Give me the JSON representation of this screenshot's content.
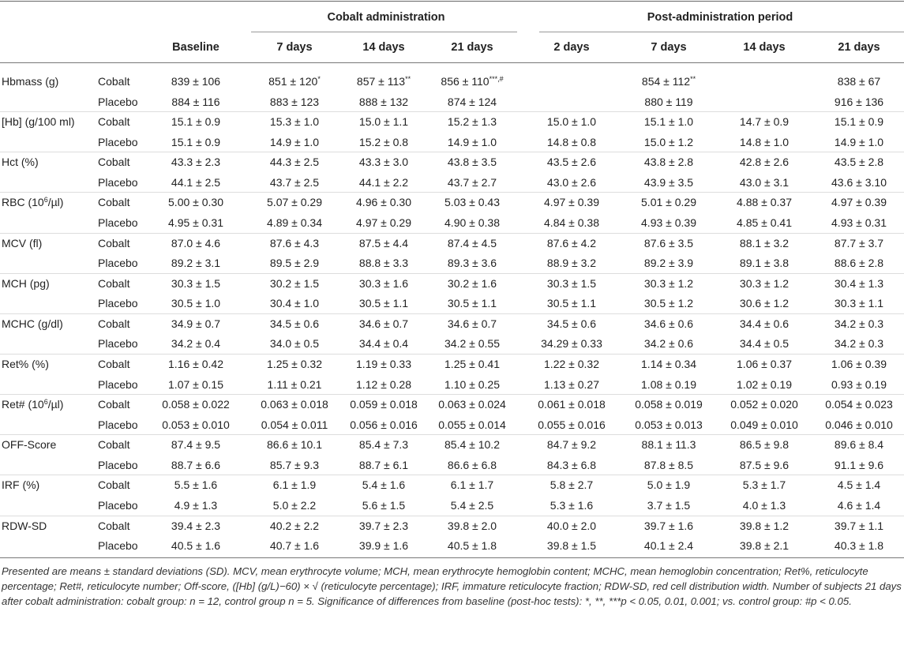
{
  "table": {
    "group_headers": [
      "Cobalt administration",
      "Post-administration period"
    ],
    "columns": [
      "Baseline",
      "7 days",
      "14 days",
      "21 days",
      "2 days",
      "7 days",
      "14 days",
      "21 days"
    ],
    "rows": [
      {
        "parameter": "Hbmass (g)",
        "groups": [
          {
            "name": "Cobalt",
            "cells": [
              "839 ± 106",
              {
                "text": "851 ± 120",
                "sup": "*"
              },
              {
                "text": "857 ± 113",
                "sup": "**"
              },
              {
                "text": "856 ± 110",
                "sup": "***,#"
              },
              null,
              {
                "text": "854 ± 112",
                "sup": "**"
              },
              null,
              "838 ± 67"
            ]
          },
          {
            "name": "Placebo",
            "cells": [
              "884 ± 116",
              "883 ± 123",
              "888 ± 132",
              "874 ± 124",
              null,
              "880 ± 119",
              null,
              "916 ± 136"
            ]
          }
        ]
      },
      {
        "parameter": "[Hb] (g/100 ml)",
        "groups": [
          {
            "name": "Cobalt",
            "cells": [
              "15.1 ± 0.9",
              "15.3 ± 1.0",
              "15.0 ± 1.1",
              "15.2 ± 1.3",
              "15.0 ± 1.0",
              "15.1 ± 1.0",
              "14.7 ± 0.9",
              "15.1 ± 0.9"
            ]
          },
          {
            "name": "Placebo",
            "cells": [
              "15.1 ± 0.9",
              "14.9 ± 1.0",
              "15.2 ± 0.8",
              "14.9 ± 1.0",
              "14.8 ± 0.8",
              "15.0 ± 1.2",
              "14.8 ± 1.0",
              "14.9 ± 1.0"
            ]
          }
        ]
      },
      {
        "parameter": "Hct (%)",
        "groups": [
          {
            "name": "Cobalt",
            "cells": [
              "43.3 ± 2.3",
              "44.3 ± 2.5",
              "43.3 ± 3.0",
              "43.8 ± 3.5",
              "43.5 ± 2.6",
              "43.8 ± 2.8",
              "42.8 ± 2.6",
              "43.5 ± 2.8"
            ]
          },
          {
            "name": "Placebo",
            "cells": [
              "44.1 ± 2.5",
              "43.7 ± 2.5",
              "44.1 ± 2.2",
              "43.7 ± 2.7",
              "43.0 ± 2.6",
              "43.9 ± 3.5",
              "43.0 ± 3.1",
              "43.6 ± 3.10"
            ]
          }
        ]
      },
      {
        "parameter": {
          "text": "RBC (10",
          "sup": "6",
          "rest": "/µl)"
        },
        "groups": [
          {
            "name": "Cobalt",
            "cells": [
              "5.00 ± 0.30",
              "5.07 ± 0.29",
              "4.96 ± 0.30",
              "5.03 ± 0.43",
              "4.97 ± 0.39",
              "5.01 ± 0.29",
              "4.88 ± 0.37",
              "4.97 ± 0.39"
            ]
          },
          {
            "name": "Placebo",
            "cells": [
              "4.95 ± 0.31",
              "4.89 ± 0.34",
              "4.97 ± 0.29",
              "4.90 ± 0.38",
              "4.84 ± 0.38",
              "4.93 ± 0.39",
              "4.85 ± 0.41",
              "4.93 ± 0.31"
            ]
          }
        ]
      },
      {
        "parameter": "MCV (fl)",
        "groups": [
          {
            "name": "Cobalt",
            "cells": [
              "87.0 ± 4.6",
              "87.6 ± 4.3",
              "87.5 ± 4.4",
              "87.4 ± 4.5",
              "87.6 ± 4.2",
              "87.6 ± 3.5",
              "88.1 ± 3.2",
              "87.7 ± 3.7"
            ]
          },
          {
            "name": "Placebo",
            "cells": [
              "89.2 ± 3.1",
              "89.5 ± 2.9",
              "88.8 ± 3.3",
              "89.3 ± 3.6",
              "88.9 ± 3.2",
              "89.2 ± 3.9",
              "89.1 ± 3.8",
              "88.6 ± 2.8"
            ]
          }
        ]
      },
      {
        "parameter": "MCH (pg)",
        "groups": [
          {
            "name": "Cobalt",
            "cells": [
              "30.3 ± 1.5",
              "30.2 ± 1.5",
              "30.3 ± 1.6",
              "30.2 ± 1.6",
              "30.3 ± 1.5",
              "30.3 ± 1.2",
              "30.3 ± 1.2",
              "30.4 ± 1.3"
            ]
          },
          {
            "name": "Placebo",
            "cells": [
              "30.5 ± 1.0",
              "30.4 ± 1.0",
              "30.5 ± 1.1",
              "30.5 ± 1.1",
              "30.5 ± 1.1",
              "30.5 ± 1.2",
              "30.6 ± 1.2",
              "30.3 ± 1.1"
            ]
          }
        ]
      },
      {
        "parameter": "MCHC (g/dl)",
        "groups": [
          {
            "name": "Cobalt",
            "cells": [
              "34.9 ± 0.7",
              "34.5 ± 0.6",
              "34.6 ± 0.7",
              "34.6 ± 0.7",
              "34.5 ± 0.6",
              "34.6 ± 0.6",
              "34.4 ± 0.6",
              "34.2 ± 0.3"
            ]
          },
          {
            "name": "Placebo",
            "cells": [
              "34.2 ± 0.4",
              "34.0 ± 0.5",
              "34.4 ± 0.4",
              "34.2 ± 0.55",
              "34.29 ± 0.33",
              "34.2 ± 0.6",
              "34.4 ± 0.5",
              "34.2 ± 0.3"
            ]
          }
        ]
      },
      {
        "parameter": "Ret% (%)",
        "groups": [
          {
            "name": "Cobalt",
            "cells": [
              "1.16 ± 0.42",
              "1.25 ± 0.32",
              "1.19 ± 0.33",
              "1.25 ± 0.41",
              "1.22 ± 0.32",
              "1.14 ± 0.34",
              "1.06 ± 0.37",
              "1.06 ± 0.39"
            ]
          },
          {
            "name": "Placebo",
            "cells": [
              "1.07 ± 0.15",
              "1.11 ± 0.21",
              "1.12 ± 0.28",
              "1.10 ± 0.25",
              "1.13 ± 0.27",
              "1.08 ± 0.19",
              "1.02 ± 0.19",
              "0.93 ± 0.19"
            ]
          }
        ]
      },
      {
        "parameter": {
          "text": "Ret# (10",
          "sup": "6",
          "rest": "/µl)"
        },
        "groups": [
          {
            "name": "Cobalt",
            "cells": [
              "0.058 ± 0.022",
              "0.063 ± 0.018",
              "0.059 ± 0.018",
              "0.063 ± 0.024",
              "0.061 ± 0.018",
              "0.058 ± 0.019",
              "0.052 ± 0.020",
              "0.054 ± 0.023"
            ]
          },
          {
            "name": "Placebo",
            "cells": [
              "0.053 ± 0.010",
              "0.054 ± 0.011",
              "0.056 ± 0.016",
              "0.055 ± 0.014",
              "0.055 ± 0.016",
              "0.053 ± 0.013",
              "0.049 ± 0.010",
              "0.046 ± 0.010"
            ]
          }
        ]
      },
      {
        "parameter": "OFF-Score",
        "groups": [
          {
            "name": "Cobalt",
            "cells": [
              "87.4 ± 9.5",
              "86.6 ± 10.1",
              "85.4 ± 7.3",
              "85.4 ± 10.2",
              "84.7 ± 9.2",
              "88.1 ± 11.3",
              "86.5 ± 9.8",
              "89.6 ± 8.4"
            ]
          },
          {
            "name": "Placebo",
            "cells": [
              "88.7 ± 6.6",
              "85.7 ± 9.3",
              "88.7 ± 6.1",
              "86.6 ± 6.8",
              "84.3 ± 6.8",
              "87.8 ± 8.5",
              "87.5 ± 9.6",
              "91.1 ± 9.6"
            ]
          }
        ]
      },
      {
        "parameter": "IRF (%)",
        "groups": [
          {
            "name": "Cobalt",
            "cells": [
              "5.5 ± 1.6",
              "6.1 ± 1.9",
              "5.4 ± 1.6",
              "6.1 ± 1.7",
              "5.8 ± 2.7",
              "5.0 ± 1.9",
              "5.3 ± 1.7",
              "4.5 ± 1.4"
            ]
          },
          {
            "name": "Placebo",
            "cells": [
              "4.9 ± 1.3",
              "5.0 ± 2.2",
              "5.6 ± 1.5",
              "5.4 ± 2.5",
              "5.3 ± 1.6",
              "3.7 ± 1.5",
              "4.0 ± 1.3",
              "4.6 ± 1.4"
            ]
          }
        ]
      },
      {
        "parameter": "RDW-SD",
        "groups": [
          {
            "name": "Cobalt",
            "cells": [
              "39.4 ± 2.3",
              "40.2 ± 2.2",
              "39.7 ± 2.3",
              "39.8 ± 2.0",
              "40.0 ± 2.0",
              "39.7 ± 1.6",
              "39.8 ± 1.2",
              "39.7 ± 1.1"
            ]
          },
          {
            "name": "Placebo",
            "cells": [
              "40.5 ± 1.6",
              "40.7 ± 1.6",
              "39.9 ± 1.6",
              "40.5 ± 1.8",
              "39.8 ± 1.5",
              "40.1 ± 2.4",
              "39.8 ± 2.1",
              "40.3 ± 1.8"
            ]
          }
        ]
      }
    ]
  },
  "footnote": "Presented are means ± standard deviations (SD). MCV, mean erythrocyte volume; MCH, mean erythrocyte hemoglobin content; MCHC, mean hemoglobin concentration; Ret%, reticulocyte percentage; Ret#, reticulocyte number; Off-score, ([Hb] (g/L)−60) × √ (reticulocyte percentage); IRF, immature reticulocyte fraction; RDW-SD, red cell distribution width. Number of subjects 21 days after cobalt administration: cobalt group: n = 12, control group n = 5. Significance of differences from baseline (post-hoc tests): *, **, ***p < 0.05, 0.01, 0.001; vs. control group: #p < 0.05."
}
